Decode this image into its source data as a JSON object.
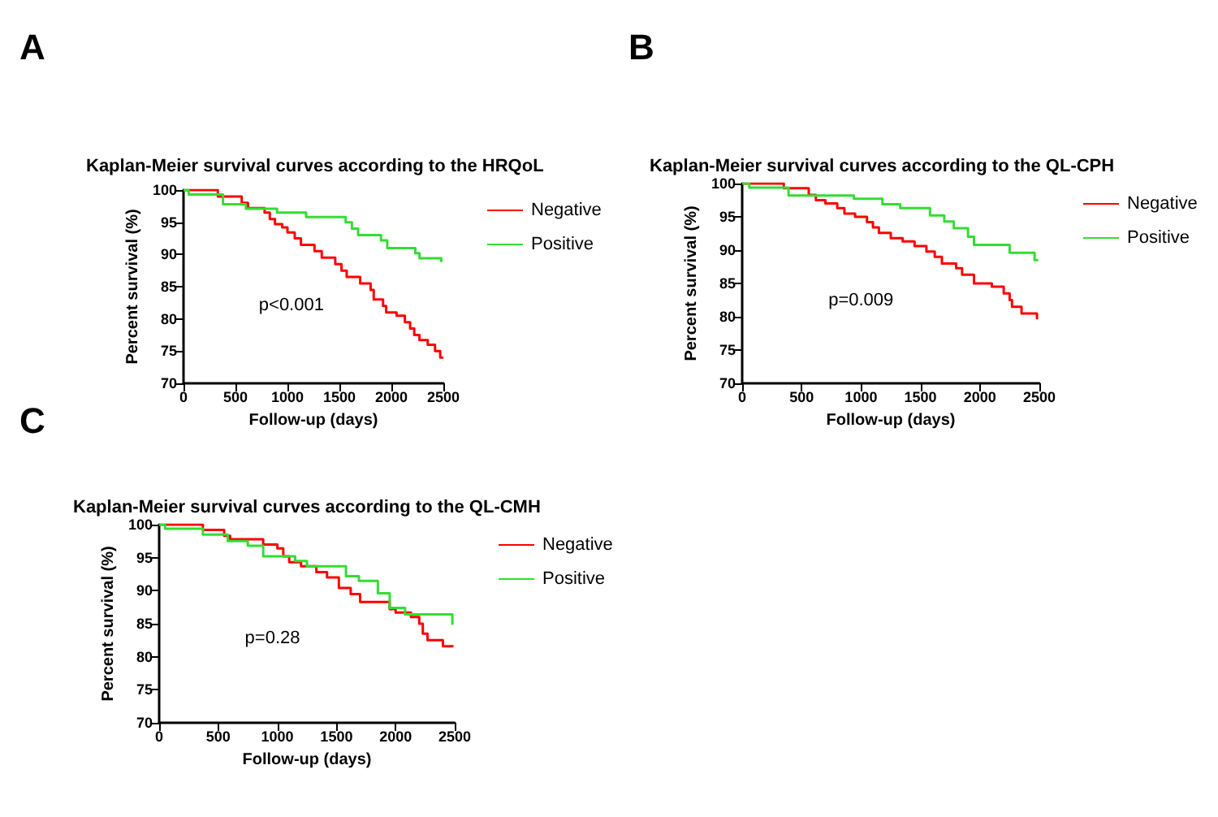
{
  "chart_data": [
    {
      "type": "step",
      "title": "Kaplan-Meier survival curves according to the HRQoL",
      "xlabel": "Follow-up (days)",
      "ylabel": "Percent survival (%)",
      "annotations": [
        "A",
        "p<0.001"
      ],
      "xlim": [
        0,
        2500
      ],
      "xticks": [
        0,
        500,
        1000,
        1500,
        2000,
        2500
      ],
      "ylim": [
        70,
        100
      ],
      "yticks": [
        70,
        75,
        80,
        85,
        90,
        95,
        100
      ],
      "grid": false,
      "legend": "right",
      "series": [
        {
          "name": "Negative",
          "color": "#ff0000",
          "x": [
            0,
            330,
            560,
            620,
            780,
            830,
            880,
            950,
            1000,
            1070,
            1130,
            1260,
            1330,
            1460,
            1520,
            1570,
            1700,
            1800,
            1830,
            1920,
            1950,
            2050,
            2130,
            2180,
            2220,
            2270,
            2350,
            2420,
            2470,
            2490
          ],
          "values": [
            100,
            99,
            98,
            97.2,
            96.5,
            95.5,
            94.7,
            94.2,
            93.4,
            92.5,
            91.5,
            90.5,
            89.5,
            88.5,
            87.5,
            86.5,
            85.5,
            84.5,
            83,
            82,
            81,
            80.5,
            79.5,
            78.5,
            77.5,
            76.7,
            76,
            75,
            74,
            73.8
          ]
        },
        {
          "name": "Positive",
          "color": "#33dd33",
          "x": [
            0,
            50,
            380,
            600,
            900,
            1180,
            1560,
            1620,
            1680,
            1900,
            1960,
            2230,
            2270,
            2480,
            2490
          ],
          "values": [
            100,
            99.3,
            97.8,
            97.1,
            96.5,
            95.8,
            95,
            94,
            93,
            92.2,
            91,
            90.2,
            89.4,
            88.8,
            88.8
          ]
        }
      ]
    },
    {
      "type": "step",
      "title": "Kaplan-Meier survival curves according to the QL-CPH",
      "xlabel": "Follow-up (days)",
      "ylabel": "Percent survival (%)",
      "annotations": [
        "B",
        "p=0.009"
      ],
      "xlim": [
        0,
        2500
      ],
      "xticks": [
        0,
        500,
        1000,
        1500,
        2000,
        2500
      ],
      "ylim": [
        70,
        100
      ],
      "yticks": [
        70,
        75,
        80,
        85,
        90,
        95,
        100
      ],
      "grid": false,
      "legend": "right",
      "series": [
        {
          "name": "Negative",
          "color": "#ff0000",
          "x": [
            0,
            350,
            560,
            620,
            700,
            800,
            860,
            950,
            1050,
            1100,
            1150,
            1250,
            1350,
            1450,
            1550,
            1620,
            1680,
            1800,
            1850,
            1950,
            2100,
            2200,
            2250,
            2270,
            2350,
            2480,
            2490
          ],
          "values": [
            100,
            99.3,
            98.3,
            97.5,
            97,
            96.3,
            95.5,
            95,
            94.2,
            93.4,
            92.6,
            91.8,
            91.3,
            90.6,
            89.8,
            89,
            88,
            87.3,
            86.3,
            85,
            84.5,
            83.5,
            82.5,
            81.5,
            80.5,
            79.8,
            79.8
          ]
        },
        {
          "name": "Positive",
          "color": "#33dd33",
          "x": [
            0,
            60,
            390,
            940,
            1180,
            1330,
            1580,
            1700,
            1780,
            1900,
            1950,
            2250,
            2460,
            2490
          ],
          "values": [
            100,
            99.4,
            98.2,
            97.7,
            96.9,
            96.3,
            95.2,
            94.3,
            93.3,
            92,
            90.8,
            89.6,
            88.5,
            88.5
          ]
        }
      ]
    },
    {
      "type": "step",
      "title": "Kaplan-Meier survival curves according to the QL-CMH",
      "xlabel": "Follow-up (days)",
      "ylabel": "Percent survival (%)",
      "annotations": [
        "C",
        "p=0.28"
      ],
      "xlim": [
        0,
        2500
      ],
      "xticks": [
        0,
        500,
        1000,
        1500,
        2000,
        2500
      ],
      "ylim": [
        70,
        100
      ],
      "yticks": [
        70,
        75,
        80,
        85,
        90,
        95,
        100
      ],
      "grid": false,
      "legend": "right",
      "series": [
        {
          "name": "Negative",
          "color": "#ff0000",
          "x": [
            0,
            370,
            550,
            600,
            880,
            1000,
            1050,
            1100,
            1200,
            1330,
            1420,
            1520,
            1620,
            1700,
            1950,
            2000,
            2130,
            2200,
            2230,
            2270,
            2400,
            2490
          ],
          "values": [
            100,
            99.2,
            98.3,
            97.8,
            97,
            96.4,
            95.2,
            94.3,
            93.7,
            92.8,
            92,
            90.4,
            89.5,
            88.3,
            87.2,
            86.7,
            86,
            85,
            83.5,
            82.5,
            81.6,
            81.6
          ]
        },
        {
          "name": "Positive",
          "color": "#33dd33",
          "x": [
            0,
            50,
            370,
            580,
            750,
            880,
            1150,
            1250,
            1580,
            1690,
            1850,
            1950,
            2080,
            2480,
            2490
          ],
          "values": [
            100,
            99.4,
            98.5,
            97.5,
            96.8,
            95.2,
            94.5,
            93.7,
            92.2,
            91.5,
            89.6,
            87.4,
            86.4,
            85,
            85
          ]
        }
      ]
    }
  ]
}
